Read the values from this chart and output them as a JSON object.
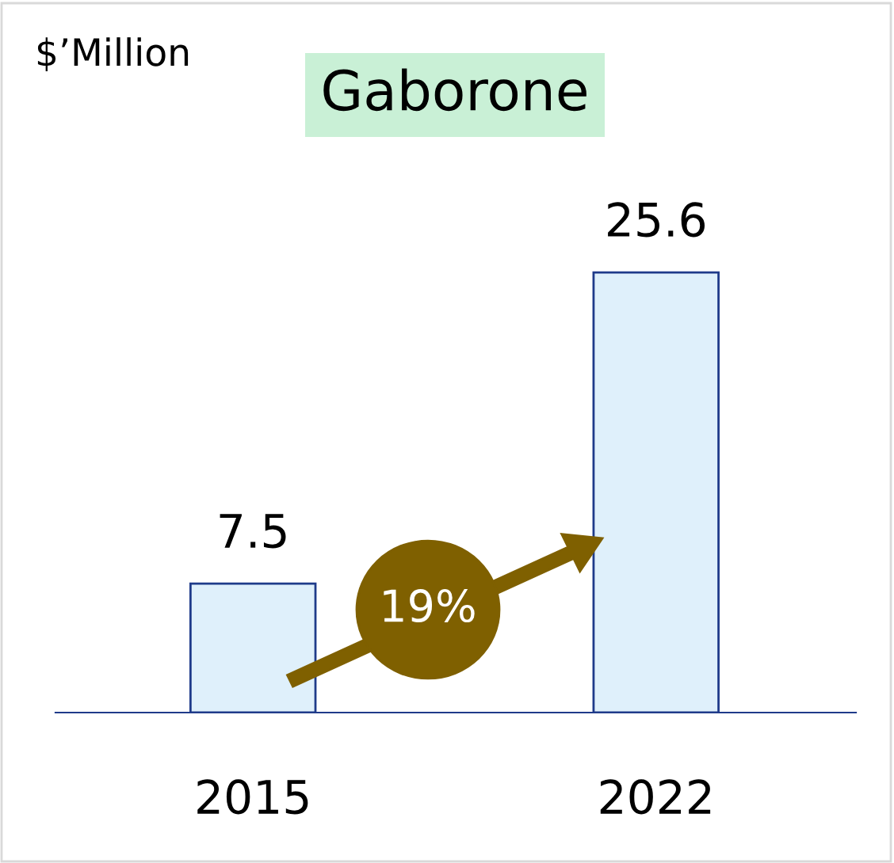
{
  "chart_data": {
    "type": "bar",
    "title": "Gaborone",
    "categories": [
      "2015",
      "2022"
    ],
    "values": [
      7.5,
      25.6
    ],
    "color": "#dff0fb",
    "data_labels": true,
    "annotations": [
      "$’Million",
      "19%"
    ]
  }
}
